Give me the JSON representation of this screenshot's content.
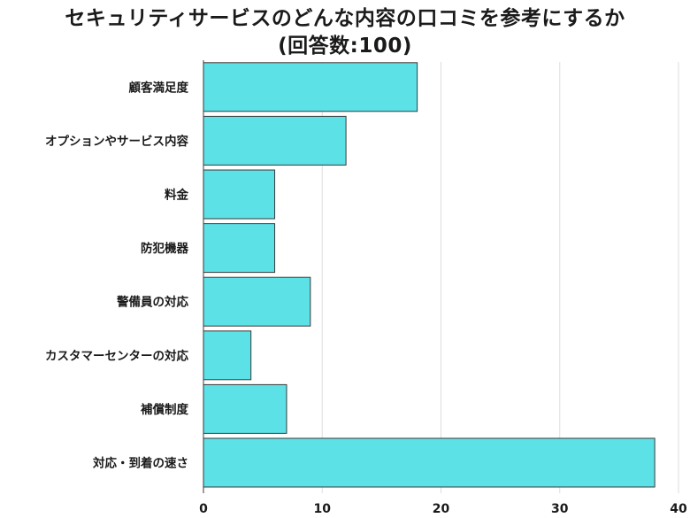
{
  "chart_data": {
    "type": "bar",
    "orientation": "horizontal",
    "title": "セキュリティサービスのどんな内容の口コミを参考にするか",
    "subtitle": "(回答数:100)",
    "categories": [
      "顧客満足度",
      "オプションやサービス内容",
      "料金",
      "防犯機器",
      "警備員の対応",
      "カスタマーセンターの対応",
      "補償制度",
      "対応・到着の速さ"
    ],
    "values": [
      18,
      12,
      6,
      6,
      9,
      4,
      7,
      38
    ],
    "xlim": [
      0,
      40
    ],
    "xticks": [
      "0",
      "10",
      "20",
      "30",
      "40"
    ],
    "xtick_values": [
      0,
      10,
      20,
      30,
      40
    ],
    "grid": true,
    "legend": "none",
    "colors": {
      "bar": "#5ce1e6",
      "bar_edge": "#3a3a3a",
      "grid": "#dddddd",
      "axis": "#3a3a3a"
    }
  }
}
